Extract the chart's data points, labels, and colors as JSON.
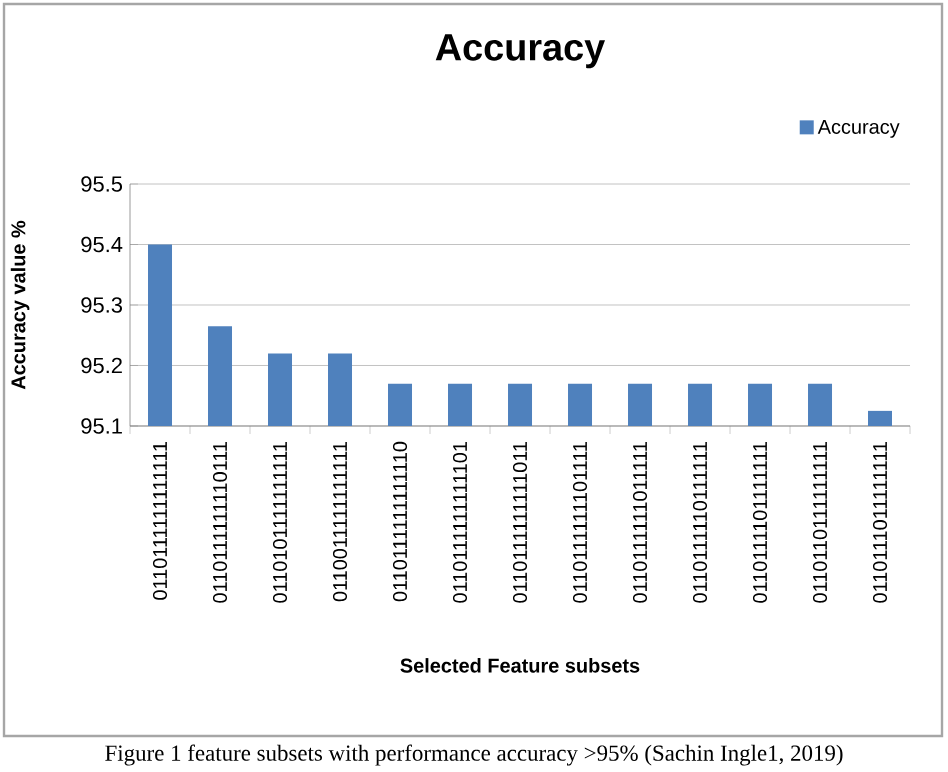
{
  "chart_data": {
    "type": "bar",
    "title": "Accuracy",
    "xlabel": "Selected Feature subsets",
    "ylabel": "Accuracy value %",
    "categories": [
      "0110111111111111",
      "0110111111110111",
      "0110101111111111",
      "0110011111111111",
      "0110111111111110",
      "0110111111111101",
      "0110111111111011",
      "0110111111101111",
      "0110111111011111",
      "0110111110111111",
      "0110111101111111",
      "0110110111111111",
      "0110111011111111"
    ],
    "series": [
      {
        "name": "Accuracy",
        "color": "#4f81bd",
        "values": [
          95.4,
          95.265,
          95.22,
          95.22,
          95.17,
          95.17,
          95.17,
          95.17,
          95.17,
          95.17,
          95.17,
          95.17,
          95.125
        ]
      }
    ],
    "ylim": [
      95.1,
      95.5
    ],
    "yticks": [
      95.1,
      95.2,
      95.3,
      95.4,
      95.5
    ],
    "grid": "y",
    "legend": "top right",
    "annotations": [
      "Figure 1 feature subsets with performance accuracy >95% (Sachin Ingle1, 2019)"
    ]
  }
}
